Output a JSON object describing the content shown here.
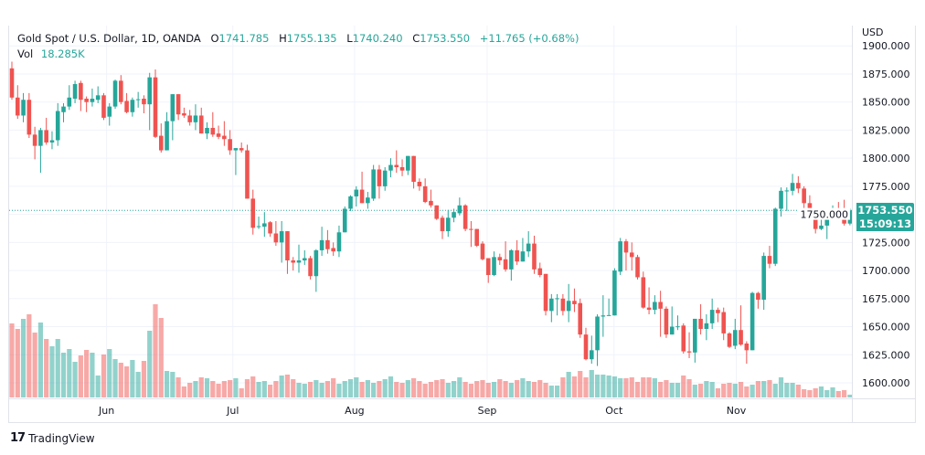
{
  "legend": {
    "symbol": "Gold Spot / U.S. Dollar, 1D, OANDA",
    "open_label": "O",
    "open": "1741.785",
    "high_label": "H",
    "high": "1755.135",
    "low_label": "L",
    "low": "1740.240",
    "close_label": "C",
    "close": "1753.550",
    "change": "+11.765 (+0.68%)",
    "vol_label": "Vol",
    "vol": "18.285K"
  },
  "price_axis": {
    "currency": "USD"
  },
  "last_price": {
    "price": "1753.550",
    "countdown": "15:09:13"
  },
  "brand": {
    "name": "TradingView"
  },
  "colors": {
    "up": "#26a69a",
    "down": "#ef5350",
    "grid": "#f0f3fa"
  },
  "chart_data": {
    "type": "candlestick",
    "title": "Gold Spot / U.S. Dollar, 1D, OANDA",
    "ylabel": "USD",
    "ylim": [
      1587,
      1910
    ],
    "y_ticks": [
      "1900.000",
      "1875.000",
      "1850.000",
      "1825.000",
      "1800.000",
      "1775.000",
      "1750.000",
      "1725.000",
      "1700.000",
      "1675.000",
      "1650.000",
      "1625.000",
      "1600.000"
    ],
    "x_ticks": [
      {
        "label": "Jun",
        "index": 16.5
      },
      {
        "label": "Jul",
        "index": 38.5
      },
      {
        "label": "Aug",
        "index": 59.7
      },
      {
        "label": "Sep",
        "index": 82.8
      },
      {
        "label": "Oct",
        "index": 104.9
      },
      {
        "label": "Nov",
        "index": 126.2
      }
    ],
    "last_price": 1753.55,
    "ohlc_fields": [
      "open",
      "high",
      "low",
      "close"
    ],
    "ohlc": [
      [
        1880,
        1886,
        1852,
        1854
      ],
      [
        1854,
        1865,
        1835,
        1838
      ],
      [
        1838,
        1858,
        1832,
        1852
      ],
      [
        1852,
        1858,
        1818,
        1821
      ],
      [
        1821,
        1828,
        1799,
        1811
      ],
      [
        1811,
        1827,
        1787,
        1825
      ],
      [
        1825,
        1836,
        1812,
        1814
      ],
      [
        1814,
        1824,
        1808,
        1816
      ],
      [
        1816,
        1849,
        1811,
        1842
      ],
      [
        1841,
        1849,
        1832,
        1846
      ],
      [
        1846,
        1865,
        1843,
        1854
      ],
      [
        1853,
        1869,
        1849,
        1866
      ],
      [
        1867,
        1869,
        1842,
        1852
      ],
      [
        1853,
        1855,
        1841,
        1850
      ],
      [
        1850,
        1862,
        1846,
        1853
      ],
      [
        1852,
        1864,
        1849,
        1856
      ],
      [
        1856,
        1858,
        1834,
        1836
      ],
      [
        1837,
        1849,
        1829,
        1846
      ],
      [
        1846,
        1870,
        1844,
        1869
      ],
      [
        1869,
        1874,
        1848,
        1850
      ],
      [
        1851,
        1858,
        1840,
        1841
      ],
      [
        1841,
        1854,
        1837,
        1852
      ],
      [
        1852,
        1859,
        1845,
        1852.5
      ],
      [
        1853,
        1856,
        1840,
        1848
      ],
      [
        1848,
        1876,
        1825,
        1872
      ],
      [
        1872,
        1879,
        1818,
        1819
      ],
      [
        1820,
        1831,
        1805,
        1807
      ],
      [
        1807,
        1841,
        1807,
        1833
      ],
      [
        1833,
        1857,
        1816,
        1857
      ],
      [
        1857,
        1857,
        1834,
        1839
      ],
      [
        1840,
        1845,
        1836,
        1838
      ],
      [
        1838,
        1843,
        1829,
        1832
      ],
      [
        1832,
        1848,
        1825,
        1838
      ],
      [
        1838,
        1845,
        1822,
        1822
      ],
      [
        1822,
        1832,
        1817,
        1827
      ],
      [
        1827,
        1841,
        1819,
        1821
      ],
      [
        1822,
        1829,
        1817,
        1819
      ],
      [
        1820,
        1833,
        1811,
        1817
      ],
      [
        1817,
        1825,
        1803,
        1807
      ],
      [
        1807,
        1809,
        1785,
        1809
      ],
      [
        1809,
        1814,
        1805,
        1807
      ],
      [
        1807,
        1812,
        1764,
        1764
      ],
      [
        1764,
        1772,
        1732,
        1738
      ],
      [
        1739,
        1748,
        1737,
        1739.5
      ],
      [
        1739,
        1752,
        1730,
        1742
      ],
      [
        1743,
        1744,
        1730,
        1733
      ],
      [
        1733,
        1744,
        1722,
        1725
      ],
      [
        1725,
        1744,
        1707,
        1735
      ],
      [
        1735,
        1735,
        1697,
        1709
      ],
      [
        1709,
        1712,
        1700,
        1707
      ],
      [
        1707,
        1723,
        1698,
        1709
      ],
      [
        1709,
        1718,
        1705,
        1711
      ],
      [
        1711,
        1713,
        1692,
        1695
      ],
      [
        1695,
        1719,
        1681,
        1718
      ],
      [
        1718,
        1739,
        1713,
        1727
      ],
      [
        1727,
        1736,
        1715,
        1719
      ],
      [
        1720,
        1725,
        1713,
        1717
      ],
      [
        1717,
        1740,
        1712,
        1734
      ],
      [
        1734,
        1757,
        1734,
        1755
      ],
      [
        1755,
        1767,
        1753,
        1766
      ],
      [
        1766,
        1775,
        1757,
        1772
      ],
      [
        1772,
        1788,
        1760,
        1760
      ],
      [
        1760,
        1770,
        1755,
        1765
      ],
      [
        1764,
        1794,
        1762,
        1790
      ],
      [
        1790,
        1794,
        1764,
        1775
      ],
      [
        1775,
        1792,
        1771,
        1789
      ],
      [
        1789,
        1800,
        1783,
        1794
      ],
      [
        1794,
        1807,
        1787,
        1792
      ],
      [
        1792,
        1799,
        1784,
        1789
      ],
      [
        1789,
        1802,
        1785,
        1802
      ],
      [
        1802,
        1802,
        1773,
        1779
      ],
      [
        1779,
        1782,
        1771,
        1775
      ],
      [
        1775,
        1782,
        1760,
        1761
      ],
      [
        1762,
        1772,
        1756,
        1758
      ],
      [
        1758,
        1758,
        1745,
        1746
      ],
      [
        1747,
        1749,
        1728,
        1735
      ],
      [
        1735,
        1754,
        1730,
        1747
      ],
      [
        1747,
        1755,
        1743,
        1752
      ],
      [
        1751,
        1765,
        1749,
        1758
      ],
      [
        1758,
        1759,
        1735,
        1737
      ],
      [
        1737,
        1744,
        1721,
        1736.7
      ],
      [
        1737,
        1737,
        1721,
        1722
      ],
      [
        1724,
        1726,
        1709,
        1710
      ],
      [
        1711,
        1711,
        1689,
        1696
      ],
      [
        1696,
        1717,
        1695,
        1712
      ],
      [
        1712,
        1715,
        1705,
        1709
      ],
      [
        1710,
        1726,
        1699,
        1701
      ],
      [
        1701,
        1719,
        1691,
        1718
      ],
      [
        1718,
        1727,
        1705,
        1708
      ],
      [
        1708,
        1729,
        1708,
        1717
      ],
      [
        1717,
        1735,
        1712,
        1724
      ],
      [
        1724,
        1731,
        1697,
        1701
      ],
      [
        1702,
        1707,
        1694,
        1696
      ],
      [
        1697,
        1697,
        1660,
        1664
      ],
      [
        1664,
        1679,
        1654,
        1675
      ],
      [
        1675,
        1679,
        1660,
        1675.3
      ],
      [
        1675,
        1679,
        1660,
        1664
      ],
      [
        1664,
        1688,
        1654,
        1673
      ],
      [
        1673,
        1684,
        1663,
        1670
      ],
      [
        1671,
        1675,
        1640,
        1643
      ],
      [
        1643,
        1649,
        1620,
        1621
      ],
      [
        1621,
        1642,
        1617,
        1629
      ],
      [
        1629,
        1661,
        1615,
        1659
      ],
      [
        1659,
        1678,
        1641,
        1660
      ],
      [
        1660,
        1675,
        1660,
        1660.3
      ],
      [
        1660,
        1702,
        1660,
        1700
      ],
      [
        1699,
        1729,
        1696,
        1726
      ],
      [
        1726,
        1728,
        1700,
        1716
      ],
      [
        1716,
        1725,
        1700,
        1712
      ],
      [
        1712,
        1714,
        1692,
        1694
      ],
      [
        1694,
        1699,
        1666,
        1667
      ],
      [
        1667,
        1685,
        1661,
        1665
      ],
      [
        1665,
        1678,
        1661,
        1672
      ],
      [
        1672,
        1682,
        1641,
        1666
      ],
      [
        1666,
        1668,
        1640,
        1643
      ],
      [
        1643,
        1668,
        1643,
        1650
      ],
      [
        1650,
        1660,
        1647,
        1650.3
      ],
      [
        1651,
        1653,
        1626,
        1628
      ],
      [
        1628,
        1645,
        1622,
        1627
      ],
      [
        1627,
        1657,
        1618,
        1657
      ],
      [
        1657,
        1670,
        1643,
        1648
      ],
      [
        1648,
        1661,
        1638,
        1653
      ],
      [
        1653,
        1675,
        1648,
        1665
      ],
      [
        1665,
        1667,
        1654,
        1662
      ],
      [
        1663,
        1667,
        1638,
        1644
      ],
      [
        1644,
        1645,
        1631,
        1632
      ],
      [
        1633,
        1657,
        1630,
        1647
      ],
      [
        1647,
        1669,
        1633,
        1634
      ],
      [
        1635,
        1637,
        1617,
        1629
      ],
      [
        1629,
        1681,
        1629,
        1680
      ],
      [
        1680,
        1681,
        1666,
        1674
      ],
      [
        1674,
        1716,
        1665,
        1713
      ],
      [
        1713,
        1722,
        1702,
        1706
      ],
      [
        1706,
        1756,
        1704,
        1755
      ],
      [
        1755,
        1774,
        1748,
        1771
      ],
      [
        1771,
        1774,
        1753,
        1771.3
      ],
      [
        1771,
        1786,
        1767,
        1778
      ],
      [
        1778,
        1784,
        1769,
        1773
      ],
      [
        1773,
        1775,
        1754,
        1760
      ],
      [
        1760,
        1767,
        1747,
        1750
      ],
      [
        1750,
        1751,
        1733,
        1737
      ],
      [
        1737,
        1749,
        1736,
        1740
      ],
      [
        1740,
        1752,
        1728,
        1749
      ],
      [
        1749,
        1758,
        1749,
        1755
      ],
      [
        1755,
        1761,
        1746,
        1753
      ],
      [
        1753,
        1763,
        1740,
        1741.785
      ],
      [
        1741.785,
        1755.135,
        1740.24,
        1753.55
      ]
    ],
    "volume_unit": "K",
    "volume": [
      486,
      450,
      516,
      546,
      426,
      492,
      384,
      336,
      384,
      294,
      318,
      234,
      276,
      312,
      294,
      144,
      282,
      318,
      252,
      228,
      204,
      246,
      168,
      240,
      438,
      612,
      522,
      174,
      168,
      132,
      72,
      96,
      108,
      132,
      126,
      108,
      90,
      108,
      114,
      126,
      60,
      120,
      138,
      102,
      108,
      84,
      108,
      144,
      150,
      120,
      96,
      90,
      102,
      114,
      96,
      108,
      126,
      90,
      108,
      120,
      132,
      102,
      114,
      96,
      108,
      120,
      138,
      102,
      96,
      114,
      126,
      108,
      90,
      102,
      114,
      120,
      96,
      108,
      132,
      102,
      90,
      108,
      114,
      96,
      102,
      120,
      108,
      96,
      114,
      126,
      108,
      102,
      114,
      96,
      78,
      78,
      132,
      168,
      138,
      174,
      132,
      180,
      150,
      150,
      144,
      138,
      126,
      126,
      132,
      102,
      132,
      132,
      126,
      102,
      114,
      96,
      96,
      144,
      120,
      84,
      90,
      108,
      102,
      60,
      90,
      96,
      90,
      102,
      72,
      84,
      108,
      108,
      114,
      90,
      132,
      96,
      96,
      84,
      54,
      48,
      60,
      72,
      48,
      66,
      42,
      48,
      18.285
    ]
  }
}
